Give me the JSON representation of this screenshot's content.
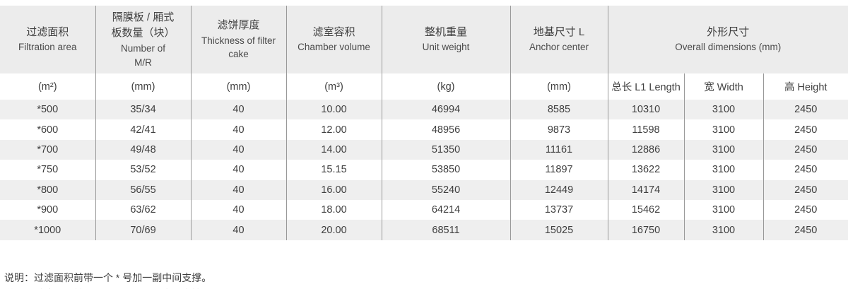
{
  "colors": {
    "header_bg": "#ececec",
    "row_alt_bg": "#efefef",
    "border_color": "#999999",
    "text_color": "#3f3f3f",
    "text_secondary": "#4a4a4a"
  },
  "table": {
    "columns": [
      {
        "zh": "过滤面积",
        "en": "Filtration area",
        "unit": "(m²)"
      },
      {
        "zh": "隔膜板 / 厢式\n板数量（块）",
        "en": "Number of\nM/R",
        "unit": "(mm)"
      },
      {
        "zh": "滤饼厚度",
        "en": "Thickness of filter\ncake",
        "unit": "(mm)"
      },
      {
        "zh": "滤室容积",
        "en": "Chamber volume",
        "unit": "(m³)"
      },
      {
        "zh": "整机重量",
        "en": "Unit weight",
        "unit": "(kg)"
      },
      {
        "zh": "地基尺寸 L",
        "en": "Anchor center",
        "unit": "(mm)"
      },
      {
        "zh": "外形尺寸",
        "en": "Overall dimensions (mm)",
        "subcolumns": [
          "总长 L1 Length",
          "宽 Width",
          "高 Height"
        ]
      }
    ],
    "rows": [
      [
        "*500",
        "35/34",
        "40",
        "10.00",
        "46994",
        "8585",
        "10310",
        "3100",
        "2450"
      ],
      [
        "*600",
        "42/41",
        "40",
        "12.00",
        "48956",
        "9873",
        "11598",
        "3100",
        "2450"
      ],
      [
        "*700",
        "49/48",
        "40",
        "14.00",
        "51350",
        "11161",
        "12886",
        "3100",
        "2450"
      ],
      [
        "*750",
        "53/52",
        "40",
        "15.15",
        "53850",
        "11897",
        "13622",
        "3100",
        "2450"
      ],
      [
        "*800",
        "56/55",
        "40",
        "16.00",
        "55240",
        "12449",
        "14174",
        "3100",
        "2450"
      ],
      [
        "*900",
        "63/62",
        "40",
        "18.00",
        "64214",
        "13737",
        "15462",
        "3100",
        "2450"
      ],
      [
        "*1000",
        "70/69",
        "40",
        "20.00",
        "68511",
        "15025",
        "16750",
        "3100",
        "2450"
      ]
    ]
  },
  "note": {
    "text": "说明：过滤面积前带一个 * 号加一副中间支撑。"
  }
}
